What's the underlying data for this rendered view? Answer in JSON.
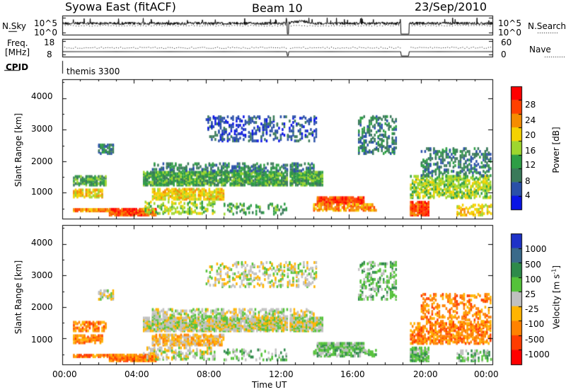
{
  "header": {
    "station": "Syowa East (fitACF)",
    "beam": "Beam 10",
    "date": "23/Sep/2010"
  },
  "noise_panel": {
    "left_label": "N.Sky",
    "right_label": "N.Search",
    "left_ticks": [
      "10^5",
      "10^0"
    ],
    "right_ticks": [
      "10^5",
      "10^0"
    ]
  },
  "freq_panel": {
    "left_label_1": "Freq.",
    "left_label_2": "[MHz]",
    "right_label": "Nave",
    "left_ticks": [
      "18",
      "8"
    ],
    "right_ticks": [
      "60",
      "0"
    ]
  },
  "cpid": {
    "label": "CPID",
    "value": "themis 3300"
  },
  "chart_data": [
    {
      "type": "heatmap",
      "name": "Power",
      "ylabel": "Slant Range [km]",
      "colorbar_label": "Power [dB]",
      "colorbar_ticks": [
        "4",
        "8",
        "12",
        "16",
        "20",
        "24",
        "28"
      ],
      "y_ticks": [
        "1000",
        "2000",
        "3000",
        "4000"
      ],
      "ylim": [
        180,
        4600
      ],
      "xlim_hours": [
        0,
        24
      ],
      "colors": [
        "#0a14e6",
        "#2a50a8",
        "#3a7a5a",
        "#2e9e45",
        "#9ed62e",
        "#f5d200",
        "#f58c00",
        "#ff4000",
        "#ff0000"
      ]
    },
    {
      "type": "heatmap",
      "name": "Velocity",
      "ylabel": "Slant Range [km]",
      "colorbar_label": "Velocity [m s^-1]",
      "colorbar_ticks": [
        "1000",
        "500",
        "100",
        "25",
        "-25",
        "-100",
        "-500",
        "-1000"
      ],
      "y_ticks": [
        "1000",
        "2000",
        "3000",
        "4000"
      ],
      "ylim": [
        180,
        4600
      ],
      "xlim_hours": [
        0,
        24
      ],
      "colors": [
        "#1e32c8",
        "#3a6a8a",
        "#2e8a4a",
        "#55c23a",
        "#c0c0c0",
        "#ffb400",
        "#ff8200",
        "#ff3c00",
        "#ff0000"
      ]
    }
  ],
  "x_axis": {
    "ticks": [
      "00:00",
      "04:00",
      "08:00",
      "12:00",
      "16:00",
      "20:00",
      "00:00"
    ],
    "label": "Time UT"
  }
}
